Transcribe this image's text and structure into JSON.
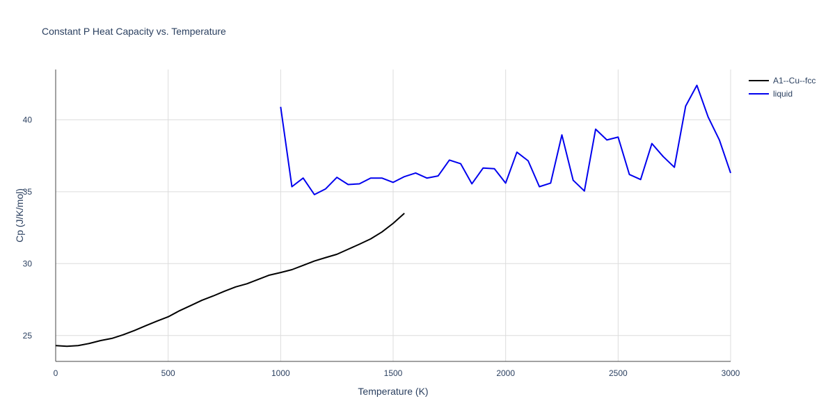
{
  "chart_data": {
    "type": "line",
    "title": "Constant P Heat Capacity vs. Temperature",
    "xlabel": "Temperature (K)",
    "ylabel": "Cp (J/K/mol)",
    "xlim": [
      0,
      3000
    ],
    "ylim": [
      23.2,
      43.5
    ],
    "xticks": [
      0,
      500,
      1000,
      1500,
      2000,
      2500,
      3000
    ],
    "yticks": [
      25,
      30,
      35,
      40
    ],
    "grid": true,
    "legend_position": "top-right",
    "series": [
      {
        "name": "A1--Cu--fcc",
        "color": "#000000",
        "x": [
          0,
          50,
          100,
          150,
          200,
          250,
          300,
          350,
          400,
          450,
          500,
          550,
          600,
          650,
          700,
          750,
          800,
          850,
          900,
          950,
          1000,
          1050,
          1100,
          1150,
          1200,
          1250,
          1300,
          1350,
          1400,
          1450,
          1500,
          1550
        ],
        "y": [
          24.3,
          24.25,
          24.3,
          24.45,
          24.65,
          24.8,
          25.05,
          25.35,
          25.68,
          26.0,
          26.3,
          26.72,
          27.08,
          27.45,
          27.75,
          28.08,
          28.38,
          28.6,
          28.9,
          29.2,
          29.38,
          29.58,
          29.88,
          30.18,
          30.42,
          30.65,
          31.0,
          31.35,
          31.72,
          32.2,
          32.8,
          33.5
        ]
      },
      {
        "name": "liquid",
        "color": "#0000ee",
        "x": [
          1000,
          1050,
          1100,
          1150,
          1200,
          1250,
          1300,
          1350,
          1400,
          1450,
          1500,
          1550,
          1600,
          1650,
          1700,
          1750,
          1800,
          1850,
          1900,
          1950,
          2000,
          2050,
          2100,
          2150,
          2200,
          2250,
          2300,
          2350,
          2400,
          2450,
          2500,
          2550,
          2600,
          2650,
          2700,
          2750,
          2800,
          2850,
          2900,
          2950,
          3000
        ],
        "y": [
          40.9,
          35.35,
          35.95,
          34.8,
          35.2,
          36.0,
          35.5,
          35.55,
          35.95,
          35.95,
          35.65,
          36.05,
          36.3,
          35.95,
          36.1,
          37.2,
          36.95,
          35.55,
          36.65,
          36.6,
          35.6,
          37.75,
          37.15,
          35.35,
          35.6,
          38.95,
          35.8,
          35.05,
          39.35,
          38.6,
          38.8,
          36.2,
          35.85,
          38.35,
          37.45,
          36.7,
          40.95,
          42.4,
          40.2,
          38.6,
          36.3
        ]
      }
    ]
  }
}
